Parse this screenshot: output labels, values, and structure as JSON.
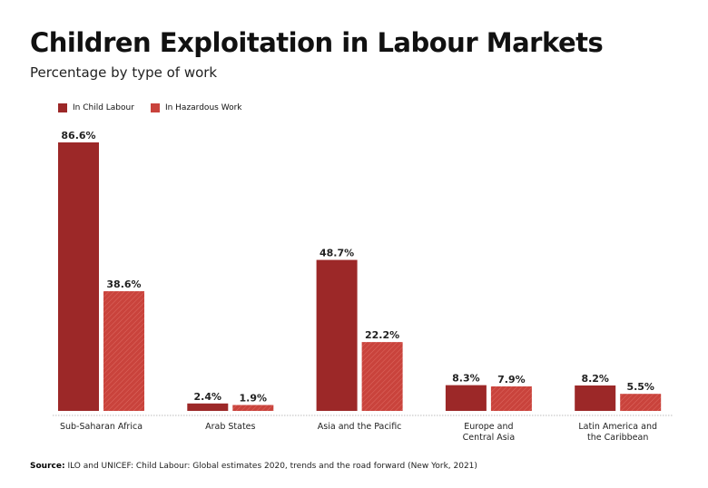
{
  "title": "Children Exploitation in Labour Markets",
  "subtitle": "Percentage by type of work",
  "source_label": "Source:",
  "source_text": "ILO and UNICEF: Child Labour: Global estimates 2020, trends and the road forward (New York, 2021)",
  "colors": {
    "child_labour": "#9c2828",
    "hazardous_work": "#c9433c",
    "hatch": "#de6a62"
  },
  "chart_data": {
    "type": "bar",
    "categories": [
      "Sub-Saharan Africa",
      "Arab States",
      "Asia and the Pacific",
      "Europe and Central Asia",
      "Latin America and the Caribbean"
    ],
    "category_lines": [
      [
        "Sub-Saharan Africa"
      ],
      [
        "Arab States"
      ],
      [
        "Asia and the Pacific"
      ],
      [
        "Europe and",
        "Central Asia"
      ],
      [
        "Latin America and",
        "the Caribbean"
      ]
    ],
    "series": [
      {
        "name": "In Child Labour",
        "values": [
          86.6,
          2.4,
          48.7,
          8.3,
          8.2
        ],
        "labels": [
          "86.6%",
          "2.4%",
          "48.7%",
          "8.3%",
          "8.2%"
        ]
      },
      {
        "name": "In Hazardous Work",
        "values": [
          38.6,
          1.9,
          22.2,
          7.9,
          5.5
        ],
        "labels": [
          "38.6%",
          "1.9%",
          "22.2%",
          "7.9%",
          "5.5%"
        ]
      }
    ],
    "ylim": [
      0,
      90
    ],
    "grid": false,
    "legend": "top-left"
  }
}
